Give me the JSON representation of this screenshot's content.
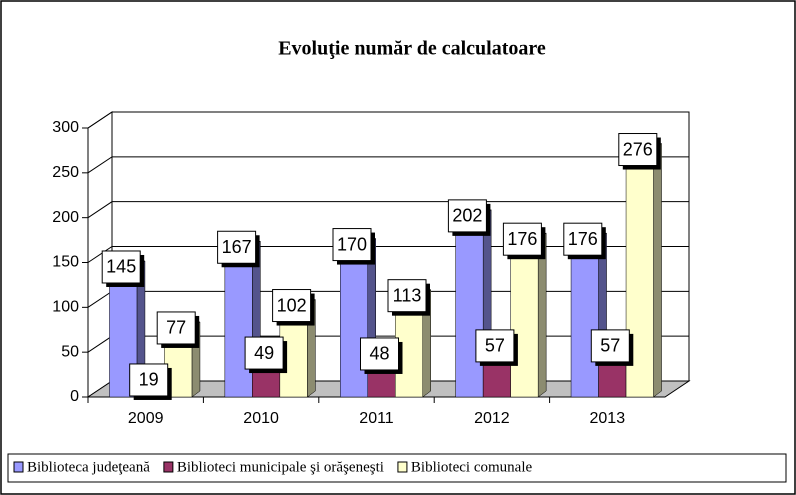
{
  "chart_data": {
    "type": "bar3d",
    "title": "Evoluţie număr de calculatoare",
    "categories": [
      "2009",
      "2010",
      "2011",
      "2012",
      "2013"
    ],
    "series": [
      {
        "name": "Biblioteca judeţeană",
        "color": "#9999ff",
        "values": [
          145,
          167,
          170,
          202,
          176
        ]
      },
      {
        "name": "Biblioteci municipale şi orăşeneşti",
        "color": "#993366",
        "values": [
          19,
          49,
          48,
          57,
          57
        ]
      },
      {
        "name": "Biblioteci comunale",
        "color": "#ffffcc",
        "values": [
          77,
          102,
          113,
          176,
          276
        ]
      }
    ],
    "ylim": [
      0,
      300
    ],
    "yticks": [
      0,
      50,
      100,
      150,
      200,
      250,
      300
    ],
    "grid": true,
    "legend": "bottom"
  }
}
